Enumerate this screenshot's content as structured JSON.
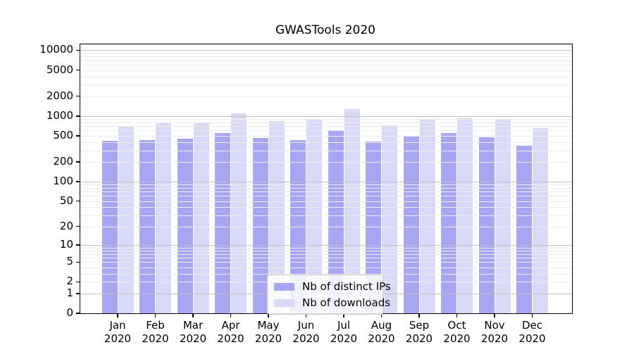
{
  "chart_data": {
    "type": "bar",
    "title": "GWASTools 2020",
    "xlabel": "",
    "ylabel": "",
    "categories": [
      "Jan 2020",
      "Feb 2020",
      "Mar 2020",
      "Apr 2020",
      "May 2020",
      "Jun 2020",
      "Jul 2020",
      "Aug 2020",
      "Sep 2020",
      "Oct 2020",
      "Nov 2020",
      "Dec 2020"
    ],
    "series": [
      {
        "name": "Nb of distinct IPs",
        "color": "#a6a6f2",
        "values": [
          420,
          430,
          450,
          555,
          460,
          430,
          610,
          405,
          495,
          550,
          475,
          355
        ]
      },
      {
        "name": "Nb of downloads",
        "color": "#d9d9f8",
        "values": [
          710,
          795,
          795,
          1110,
          835,
          890,
          1280,
          725,
          900,
          920,
          885,
          650
        ]
      }
    ],
    "y_scale": "log10(value+1)",
    "y_ticks": [
      0,
      1,
      2,
      5,
      10,
      20,
      50,
      100,
      200,
      500,
      1000,
      2000,
      5000,
      10000
    ],
    "ylim": [
      0,
      12000
    ],
    "grid": {
      "minor_color": "#ececec",
      "major_color": "#c2c2c2",
      "major_at": [
        1,
        10,
        100,
        1000,
        10000
      ]
    },
    "legend_position": "lower-center",
    "frame_color": "#000000"
  }
}
